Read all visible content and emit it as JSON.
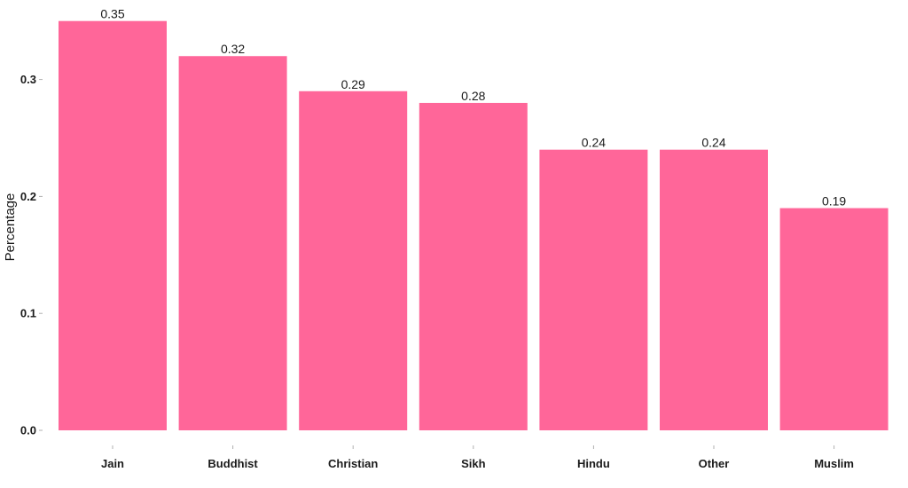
{
  "chart_data": {
    "type": "bar",
    "categories": [
      "Jain",
      "Buddhist",
      "Christian",
      "Sikh",
      "Hindu",
      "Other",
      "Muslim"
    ],
    "values": [
      0.35,
      0.32,
      0.29,
      0.28,
      0.24,
      0.24,
      0.19
    ],
    "value_labels": [
      "0.35",
      "0.32",
      "0.29",
      "0.28",
      "0.24",
      "0.24",
      "0.19"
    ],
    "title": "",
    "xlabel": "",
    "ylabel": "Percentage",
    "ylim": [
      0,
      0.35
    ],
    "yticks": [
      0.0,
      0.1,
      0.2,
      0.3
    ],
    "ytick_labels": [
      "0.0",
      "0.1",
      "0.2",
      "0.3"
    ],
    "grid": false,
    "legend": "none",
    "bar_color": "#FF6699"
  }
}
